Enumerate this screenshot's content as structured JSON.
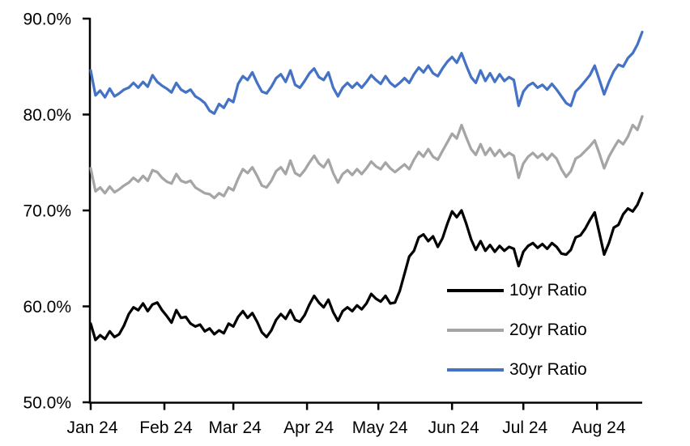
{
  "chart_data": {
    "type": "line",
    "title": "",
    "grid": false,
    "background": "#ffffff",
    "axis_color": "#000000",
    "legend_position": "inside-lower-right",
    "y_axis": {
      "min": 50,
      "max": 90,
      "unit": "%",
      "tick_values": [
        90,
        80,
        70,
        60,
        50
      ],
      "tick_labels": [
        "90.0%",
        "80.0%",
        "70.0%",
        "60.0%",
        "50.0%"
      ]
    },
    "x_axis": {
      "start_day": 0,
      "end_day": 232,
      "tick_days": [
        0,
        31,
        60,
        91,
        121,
        152,
        182,
        213
      ],
      "tick_labels": [
        "Jan 24",
        "Feb 24",
        "Mar 24",
        "Apr 24",
        "May 24",
        "Jun 24",
        "Jul 24",
        "Aug 24"
      ]
    },
    "sample_step_days": 2,
    "series": [
      {
        "name": "10yr Ratio",
        "color": "#000000",
        "values": [
          58.2,
          56.5,
          57.0,
          56.6,
          57.4,
          56.8,
          57.1,
          58.0,
          59.2,
          59.9,
          59.6,
          60.3,
          59.5,
          60.2,
          60.4,
          59.6,
          59.0,
          58.3,
          59.6,
          58.8,
          58.9,
          58.2,
          57.9,
          58.1,
          57.4,
          57.7,
          57.1,
          57.5,
          57.2,
          58.2,
          57.9,
          58.9,
          59.5,
          58.8,
          59.3,
          58.4,
          57.3,
          56.8,
          57.5,
          58.6,
          59.2,
          58.7,
          59.6,
          58.6,
          58.4,
          59.1,
          60.2,
          61.1,
          60.4,
          59.9,
          60.7,
          59.4,
          58.5,
          59.5,
          59.9,
          59.5,
          60.1,
          59.7,
          60.3,
          61.3,
          60.8,
          60.5,
          61.1,
          60.3,
          60.4,
          61.6,
          63.4,
          65.2,
          65.8,
          67.2,
          67.5,
          66.8,
          67.3,
          66.2,
          67.1,
          68.6,
          69.9,
          69.3,
          70.0,
          68.6,
          67.0,
          65.9,
          66.8,
          65.8,
          66.4,
          65.7,
          66.3,
          65.8,
          66.2,
          66.0,
          64.2,
          65.7,
          66.3,
          66.6,
          66.1,
          66.5,
          66.0,
          66.6,
          66.2,
          65.5,
          65.4,
          65.9,
          67.2,
          67.4,
          68.1,
          69.0,
          69.8,
          67.6,
          65.4,
          66.6,
          68.2,
          68.5,
          69.6,
          70.2,
          69.9,
          70.6,
          71.8
        ]
      },
      {
        "name": "20yr Ratio",
        "color": "#A5A5A5",
        "values": [
          74.4,
          72.0,
          72.4,
          71.8,
          72.5,
          71.9,
          72.2,
          72.6,
          72.9,
          73.4,
          73.0,
          73.6,
          73.1,
          74.2,
          74.0,
          73.4,
          73.0,
          72.8,
          73.8,
          73.1,
          72.9,
          73.1,
          72.4,
          72.1,
          71.8,
          71.7,
          71.3,
          71.8,
          71.5,
          72.4,
          72.1,
          73.3,
          74.3,
          73.9,
          74.5,
          73.6,
          72.6,
          72.4,
          73.1,
          74.1,
          74.5,
          73.8,
          75.2,
          73.9,
          73.6,
          74.2,
          75.0,
          75.7,
          74.9,
          74.5,
          75.3,
          73.9,
          72.9,
          73.8,
          74.2,
          73.7,
          74.3,
          73.8,
          74.4,
          75.1,
          74.6,
          74.3,
          75.0,
          74.4,
          74.0,
          74.4,
          74.8,
          74.3,
          75.3,
          76.1,
          75.6,
          76.4,
          75.6,
          75.3,
          76.2,
          77.1,
          78.0,
          77.5,
          78.9,
          77.6,
          76.4,
          75.8,
          76.9,
          75.8,
          76.5,
          75.7,
          76.3,
          75.6,
          76.0,
          75.7,
          73.4,
          74.9,
          75.6,
          76.0,
          75.5,
          75.9,
          75.3,
          75.9,
          75.4,
          74.3,
          73.5,
          74.1,
          75.4,
          75.7,
          76.2,
          76.7,
          77.3,
          75.9,
          74.4,
          75.6,
          76.5,
          77.3,
          76.9,
          77.7,
          78.9,
          78.4,
          79.8
        ]
      },
      {
        "name": "30yr Ratio",
        "color": "#4472C4",
        "values": [
          84.6,
          82.0,
          82.5,
          81.8,
          82.7,
          81.9,
          82.2,
          82.6,
          82.8,
          83.3,
          82.8,
          83.4,
          82.9,
          84.1,
          83.4,
          83.0,
          82.7,
          82.3,
          83.3,
          82.6,
          82.3,
          82.6,
          81.9,
          81.6,
          81.2,
          80.4,
          80.1,
          81.1,
          80.7,
          81.6,
          81.3,
          83.2,
          84.0,
          83.6,
          84.4,
          83.3,
          82.4,
          82.2,
          82.9,
          83.8,
          84.2,
          83.4,
          84.6,
          83.1,
          82.8,
          83.5,
          84.3,
          84.8,
          83.9,
          83.6,
          84.4,
          82.8,
          81.9,
          82.8,
          83.3,
          82.8,
          83.3,
          82.8,
          83.4,
          84.1,
          83.6,
          83.2,
          84.0,
          83.3,
          82.9,
          83.3,
          83.8,
          83.3,
          84.2,
          84.9,
          84.4,
          85.1,
          84.3,
          84.0,
          84.8,
          85.5,
          86.0,
          85.4,
          86.4,
          85.1,
          83.9,
          83.3,
          84.6,
          83.5,
          84.3,
          83.4,
          84.2,
          83.5,
          83.9,
          83.6,
          80.9,
          82.4,
          83.0,
          83.3,
          82.8,
          83.1,
          82.6,
          83.2,
          82.6,
          81.9,
          81.2,
          80.9,
          82.4,
          82.9,
          83.5,
          84.1,
          85.1,
          83.6,
          82.1,
          83.4,
          84.5,
          85.2,
          85.0,
          85.9,
          86.4,
          87.3,
          88.6
        ]
      }
    ]
  }
}
